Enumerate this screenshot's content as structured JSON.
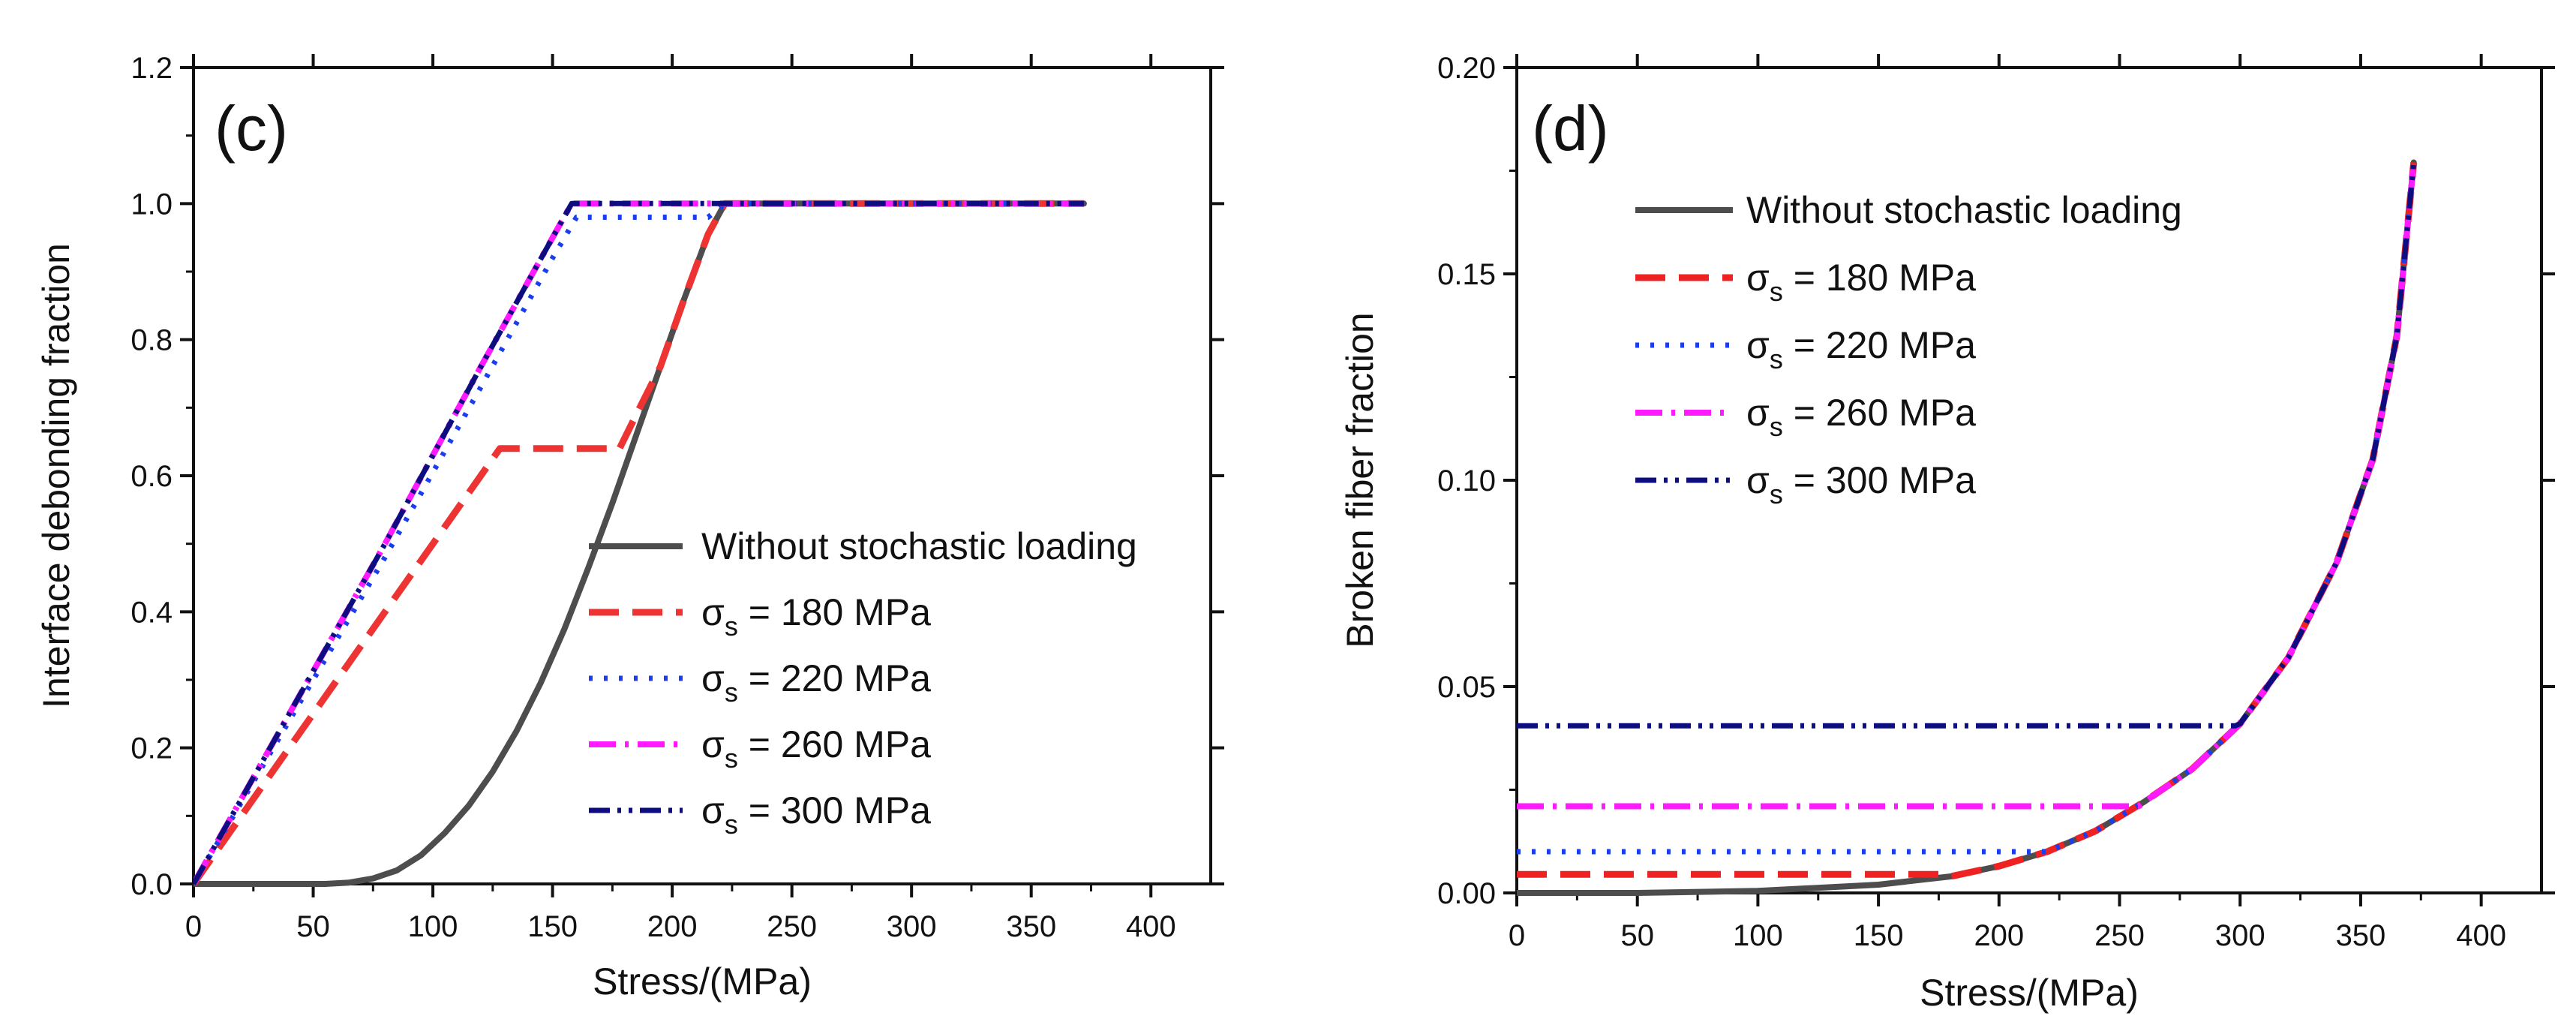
{
  "chart_data": [
    {
      "type": "line",
      "panel_label": "(c)",
      "xlabel": "Stress/(MPa)",
      "ylabel": "Interface debonding fraction",
      "xlim": [
        0,
        425
      ],
      "ylim": [
        0,
        1.2
      ],
      "xticks": [
        0,
        50,
        100,
        150,
        200,
        250,
        300,
        350,
        400
      ],
      "yticks": [
        0.0,
        0.2,
        0.4,
        0.6,
        0.8,
        1.0,
        1.2
      ],
      "xtick_labels": [
        "0",
        "50",
        "100",
        "150",
        "200",
        "250",
        "300",
        "350",
        "400"
      ],
      "ytick_labels": [
        "0.0",
        "0.2",
        "0.4",
        "0.6",
        "0.8",
        "1.0",
        "1.2"
      ],
      "legend": {
        "position": "center-right"
      },
      "series": [
        {
          "name": "Without stochastic loading",
          "label_pre": "Without stochastic loading",
          "label_sub": "",
          "label_post": "",
          "color": "#4d4d4d",
          "style": "solid",
          "x": [
            0,
            30,
            55,
            65,
            75,
            85,
            95,
            105,
            115,
            125,
            135,
            145,
            155,
            165,
            175,
            185,
            195,
            205,
            215,
            222,
            372
          ],
          "y": [
            0,
            0.0,
            0.0,
            0.002,
            0.008,
            0.02,
            0.042,
            0.075,
            0.115,
            0.165,
            0.225,
            0.295,
            0.375,
            0.465,
            0.56,
            0.66,
            0.76,
            0.86,
            0.955,
            1.0,
            1.0
          ]
        },
        {
          "name": "σs = 180 MPa",
          "label_pre": "σ",
          "label_sub": "s",
          "label_post": " = 180 MPa",
          "color": "#ee3333",
          "style": "dash",
          "x": [
            0,
            20,
            60,
            100,
            120,
            128,
            178,
            185,
            195,
            205,
            215,
            222,
            372
          ],
          "y": [
            0,
            0.1,
            0.3,
            0.5,
            0.6,
            0.64,
            0.64,
            0.69,
            0.76,
            0.86,
            0.955,
            1.0,
            1.0
          ]
        },
        {
          "name": "σs = 220 MPa",
          "label_pre": "σ",
          "label_sub": "s",
          "label_post": " = 220 MPa",
          "color": "#1a3df0",
          "style": "dot",
          "x": [
            0,
            40,
            80,
            120,
            150,
            160,
            215,
            222,
            372
          ],
          "y": [
            0,
            0.24,
            0.48,
            0.73,
            0.92,
            0.98,
            0.98,
            1.0,
            1.0
          ]
        },
        {
          "name": "σs = 260 MPa",
          "label_pre": "σ",
          "label_sub": "s",
          "label_post": " = 260 MPa",
          "color": "#ff1aff",
          "style": "dashdot",
          "x": [
            0,
            40,
            80,
            120,
            150,
            158,
            372
          ],
          "y": [
            0,
            0.25,
            0.5,
            0.76,
            0.95,
            1.0,
            1.0
          ]
        },
        {
          "name": "σs = 300 MPa",
          "label_pre": "σ",
          "label_sub": "s",
          "label_post": " = 300 MPa",
          "color": "#0d0d80",
          "style": "dashdotdot",
          "x": [
            0,
            40,
            80,
            120,
            150,
            158,
            372
          ],
          "y": [
            0,
            0.25,
            0.5,
            0.76,
            0.95,
            1.0,
            1.0
          ]
        }
      ]
    },
    {
      "type": "line",
      "panel_label": "(d)",
      "xlabel": "Stress/(MPa)",
      "ylabel": "Broken fiber fraction",
      "xlim": [
        0,
        425
      ],
      "ylim": [
        0,
        0.2
      ],
      "xticks": [
        0,
        50,
        100,
        150,
        200,
        250,
        300,
        350,
        400
      ],
      "yticks": [
        0.0,
        0.05,
        0.1,
        0.15,
        0.2
      ],
      "xtick_labels": [
        "0",
        "50",
        "100",
        "150",
        "200",
        "250",
        "300",
        "350",
        "400"
      ],
      "ytick_labels": [
        "0.00",
        "0.05",
        "0.10",
        "0.15",
        "0.20"
      ],
      "legend": {
        "position": "top-left"
      },
      "series": [
        {
          "name": "Without stochastic loading",
          "label_pre": "Without stochastic loading",
          "label_sub": "",
          "label_post": "",
          "color": "#4d4d4d",
          "style": "solid",
          "x": [
            0,
            50,
            100,
            150,
            180,
            200,
            220,
            240,
            260,
            280,
            300,
            320,
            340,
            355,
            365,
            372
          ],
          "y": [
            0.0,
            0.0,
            0.0005,
            0.002,
            0.004,
            0.0065,
            0.01,
            0.015,
            0.022,
            0.03,
            0.041,
            0.057,
            0.08,
            0.105,
            0.135,
            0.177
          ]
        },
        {
          "name": "σs = 180 MPa",
          "label_pre": "σ",
          "label_sub": "s",
          "label_post": " = 180 MPa",
          "color": "#ee2222",
          "style": "dash",
          "x": [
            0,
            175,
            180,
            200,
            220,
            240,
            260,
            280,
            300,
            320,
            340,
            355,
            365,
            372
          ],
          "y": [
            0.0045,
            0.0045,
            0.004,
            0.0065,
            0.01,
            0.015,
            0.022,
            0.03,
            0.041,
            0.057,
            0.08,
            0.105,
            0.135,
            0.177
          ]
        },
        {
          "name": "σs = 220 MPa",
          "label_pre": "σ",
          "label_sub": "s",
          "label_post": " = 220 MPa",
          "color": "#1a3df0",
          "style": "dot",
          "x": [
            0,
            217,
            220,
            240,
            260,
            280,
            300,
            320,
            340,
            355,
            365,
            372
          ],
          "y": [
            0.01,
            0.01,
            0.01,
            0.015,
            0.022,
            0.03,
            0.041,
            0.057,
            0.08,
            0.105,
            0.135,
            0.177
          ]
        },
        {
          "name": "σs = 260 MPa",
          "label_pre": "σ",
          "label_sub": "s",
          "label_post": " = 260 MPa",
          "color": "#ff1aff",
          "style": "dashdot",
          "x": [
            0,
            258,
            260,
            280,
            300,
            320,
            340,
            355,
            365,
            372
          ],
          "y": [
            0.021,
            0.021,
            0.022,
            0.03,
            0.041,
            0.057,
            0.08,
            0.105,
            0.135,
            0.177
          ]
        },
        {
          "name": "σs = 300 MPa",
          "label_pre": "σ",
          "label_sub": "s",
          "label_post": " = 300 MPa",
          "color": "#0d0d80",
          "style": "dashdotdot",
          "x": [
            0,
            298,
            300,
            320,
            340,
            355,
            365,
            372
          ],
          "y": [
            0.0405,
            0.0405,
            0.041,
            0.057,
            0.08,
            0.105,
            0.135,
            0.177
          ]
        }
      ]
    }
  ]
}
